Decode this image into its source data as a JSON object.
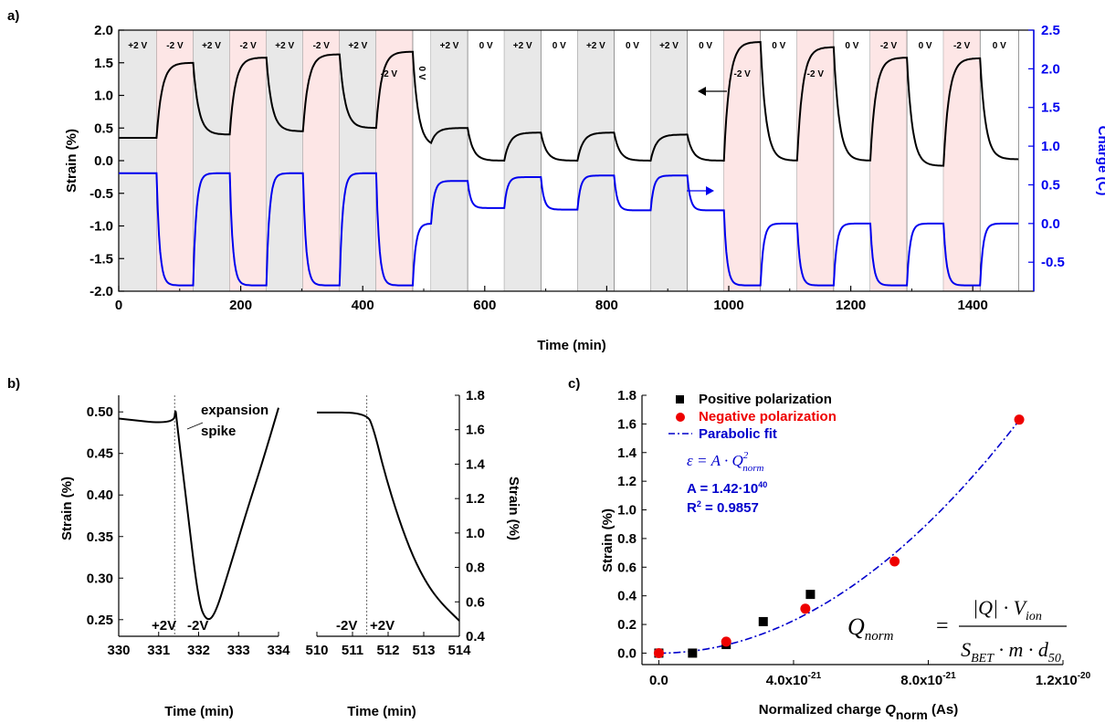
{
  "panels": {
    "a": {
      "letter": "a)"
    },
    "b": {
      "letter": "b)"
    },
    "c": {
      "letter": "c)"
    }
  },
  "chart_data": [
    {
      "panel": "a",
      "type": "line",
      "xlabel": "Time (min)",
      "ylabel_left": "Strain (%)",
      "ylabel_right": "Charge (C)",
      "xlim": [
        0,
        1500
      ],
      "ylim_left": [
        -2.0,
        2.0
      ],
      "ylim_right": [
        -0.875,
        2.5
      ],
      "xticks": [
        0,
        200,
        400,
        600,
        800,
        1000,
        1200,
        1400
      ],
      "yticks_left": [
        -2.0,
        -1.5,
        -1.0,
        -0.5,
        0.0,
        0.5,
        1.0,
        1.5,
        2.0
      ],
      "yticks_right": [
        -0.5,
        0.0,
        0.5,
        1.0,
        1.5,
        2.0,
        2.5
      ],
      "segments": [
        {
          "start": 0,
          "end": 62,
          "label": "+2 V",
          "shade": "gray"
        },
        {
          "start": 62,
          "end": 122,
          "label": "-2 V",
          "shade": "pink"
        },
        {
          "start": 122,
          "end": 182,
          "label": "+2 V",
          "shade": "gray"
        },
        {
          "start": 182,
          "end": 242,
          "label": "-2 V",
          "shade": "pink"
        },
        {
          "start": 242,
          "end": 302,
          "label": "+2 V",
          "shade": "gray"
        },
        {
          "start": 302,
          "end": 362,
          "label": "-2 V",
          "shade": "pink"
        },
        {
          "start": 362,
          "end": 422,
          "label": "+2 V",
          "shade": "gray"
        },
        {
          "start": 422,
          "end": 482,
          "label": "-2 V",
          "shade": "pink"
        },
        {
          "start": 482,
          "end": 512,
          "label": "0 V",
          "shade": "none"
        },
        {
          "start": 512,
          "end": 572,
          "label": "+2 V",
          "shade": "gray"
        },
        {
          "start": 572,
          "end": 632,
          "label": "0 V",
          "shade": "none"
        },
        {
          "start": 632,
          "end": 692,
          "label": "+2 V",
          "shade": "gray"
        },
        {
          "start": 692,
          "end": 752,
          "label": "0 V",
          "shade": "none"
        },
        {
          "start": 752,
          "end": 812,
          "label": "+2 V",
          "shade": "gray"
        },
        {
          "start": 812,
          "end": 872,
          "label": "0 V",
          "shade": "none"
        },
        {
          "start": 872,
          "end": 932,
          "label": "+2 V",
          "shade": "gray"
        },
        {
          "start": 932,
          "end": 992,
          "label": "0 V",
          "shade": "none"
        },
        {
          "start": 992,
          "end": 1052,
          "label": "-2 V",
          "shade": "pink"
        },
        {
          "start": 1052,
          "end": 1112,
          "label": "0 V",
          "shade": "none"
        },
        {
          "start": 1112,
          "end": 1172,
          "label": "-2 V",
          "shade": "pink"
        },
        {
          "start": 1172,
          "end": 1232,
          "label": "0 V",
          "shade": "none"
        },
        {
          "start": 1232,
          "end": 1292,
          "label": "-2 V",
          "shade": "pink"
        },
        {
          "start": 1292,
          "end": 1352,
          "label": "0 V",
          "shade": "none"
        },
        {
          "start": 1352,
          "end": 1412,
          "label": "-2 V",
          "shade": "pink"
        },
        {
          "start": 1412,
          "end": 1475,
          "label": "0 V",
          "shade": "none"
        }
      ],
      "strain_levels": [
        0.35,
        1.5,
        0.4,
        1.58,
        0.45,
        1.63,
        0.5,
        1.67,
        0.22,
        0.5,
        0.0,
        0.43,
        0.0,
        0.43,
        0.0,
        0.4,
        0.0,
        1.82,
        0.0,
        1.74,
        0.0,
        1.58,
        -0.08,
        1.57,
        0.02
      ],
      "charge_levels": [
        0.65,
        -0.8,
        0.65,
        -0.8,
        0.65,
        -0.8,
        0.65,
        -0.8,
        0.0,
        0.55,
        0.2,
        0.6,
        0.18,
        0.62,
        0.17,
        0.62,
        0.17,
        -0.8,
        0.0,
        -0.8,
        0.0,
        -0.8,
        0.0,
        -0.8,
        0.0
      ],
      "series": [
        {
          "name": "Strain",
          "color": "#000000",
          "axis": "left"
        },
        {
          "name": "Charge",
          "color": "#0000ee",
          "axis": "right"
        }
      ]
    },
    {
      "panel": "b-left",
      "type": "line",
      "xlabel": "Time (min)",
      "ylabel": "Strain (%)",
      "xlim": [
        330,
        334
      ],
      "ylim": [
        0.23,
        0.52
      ],
      "xticks": [
        330,
        331,
        332,
        333,
        334
      ],
      "yticks": [
        0.25,
        0.3,
        0.35,
        0.4,
        0.45,
        0.5
      ],
      "switch_time": 331.4,
      "left_state": "+2V",
      "right_state": "-2V",
      "annotation": [
        "expansion",
        "spike"
      ],
      "points": [
        [
          330,
          0.492
        ],
        [
          331.38,
          0.485
        ],
        [
          331.42,
          0.505
        ],
        [
          331.45,
          0.49
        ],
        [
          331.7,
          0.39
        ],
        [
          332.0,
          0.27
        ],
        [
          332.2,
          0.248
        ],
        [
          332.4,
          0.255
        ],
        [
          332.7,
          0.3
        ],
        [
          333.2,
          0.38
        ],
        [
          333.6,
          0.44
        ],
        [
          334.0,
          0.505
        ]
      ]
    },
    {
      "panel": "b-right",
      "type": "line",
      "xlabel": "Time (min)",
      "ylabel": "Strain (%)",
      "xlim": [
        510,
        514
      ],
      "ylim": [
        0.4,
        1.8
      ],
      "xticks": [
        510,
        511,
        512,
        513,
        514
      ],
      "yticks": [
        0.4,
        0.6,
        0.8,
        1.0,
        1.2,
        1.4,
        1.6,
        1.8
      ],
      "switch_time": 511.4,
      "left_state": "-2V",
      "right_state": "+2V",
      "points": [
        [
          510,
          1.7
        ],
        [
          511.4,
          1.7
        ],
        [
          511.6,
          1.6
        ],
        [
          511.9,
          1.35
        ],
        [
          512.3,
          1.08
        ],
        [
          512.7,
          0.86
        ],
        [
          513.1,
          0.7
        ],
        [
          513.5,
          0.59
        ],
        [
          514.0,
          0.49
        ]
      ]
    },
    {
      "panel": "c",
      "type": "scatter",
      "xlabel_prefix": "Normalized charge ",
      "xlabel_q": "Q",
      "xlabel_sub": "norm",
      "xlabel_suffix": " (As)",
      "ylabel": "Strain (%)",
      "xlim": [
        -0.5,
        12.0
      ],
      "x_scale_note": "x values in units of 1e-21 As",
      "ylim": [
        -0.08,
        1.8
      ],
      "xtick_values": [
        0.0,
        4.0,
        8.0,
        12.0
      ],
      "xtick_labels": [
        "0.0",
        "4.0x10",
        "8.0x10",
        "1.2x10"
      ],
      "xtick_exps": [
        "",
        "-21",
        "-21",
        "-20"
      ],
      "yticks": [
        0.0,
        0.2,
        0.4,
        0.6,
        0.8,
        1.0,
        1.2,
        1.4,
        1.6,
        1.8
      ],
      "series": [
        {
          "name": "Positive polarization",
          "marker": "square",
          "color": "#000000",
          "points": [
            [
              0.0,
              0.0
            ],
            [
              1.0,
              0.0
            ],
            [
              2.0,
              0.06
            ],
            [
              3.1,
              0.22
            ],
            [
              4.5,
              0.41
            ]
          ]
        },
        {
          "name": "Negative polarization",
          "marker": "circle",
          "color": "#ee0000",
          "points": [
            [
              0.0,
              0.0
            ],
            [
              2.0,
              0.08
            ],
            [
              4.35,
              0.31
            ],
            [
              7.0,
              0.64
            ],
            [
              10.7,
              1.63
            ]
          ]
        },
        {
          "name": "Parabolic fit",
          "marker": "dashdot",
          "color": "#0000cc",
          "coef": 0.0142
        }
      ],
      "fit_a_text": "A = 1.42·10",
      "fit_a_exp": "40",
      "fit_r_text": "R",
      "fit_r_exp": "2",
      "fit_r_value": " = 0.9857",
      "eq_epsilon": "ε = A · Q",
      "eq_epsilon_sub": "norm",
      "eq_epsilon_sup": "2",
      "eq_lhs": "Q",
      "eq_lhs_sub": "norm",
      "eq_equals": "=",
      "eq_numerator": "|Q| · V",
      "eq_numerator_sub": "ion",
      "eq_denominator": "S",
      "eq_denominator_sub": "BET",
      "eq_denominator_rest": " · m · d",
      "eq_denominator_sub2": "50"
    }
  ]
}
